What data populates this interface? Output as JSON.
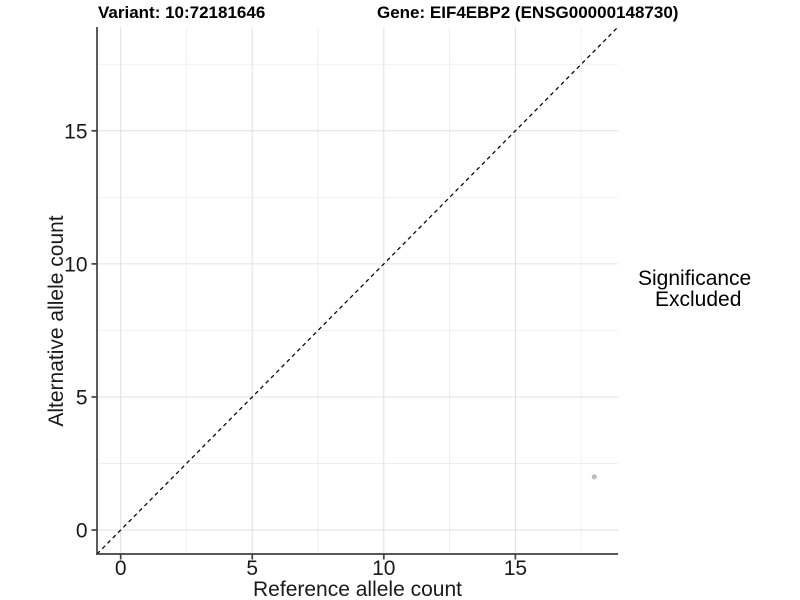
{
  "chart_data": {
    "type": "scatter",
    "title_left": "Variant: 10:72181646",
    "title_right": "Gene: EIF4EBP2 (ENSG00000148730)",
    "xlabel": "Reference allele count",
    "ylabel": "Alternative allele count",
    "xlim": [
      -0.9,
      18.9
    ],
    "ylim": [
      -0.9,
      18.9
    ],
    "x_ticks": [
      0,
      5,
      10,
      15
    ],
    "y_ticks": [
      0,
      5,
      10,
      15
    ],
    "x_minor_ticks": [
      2.5,
      7.5,
      12.5,
      17.5
    ],
    "y_minor_ticks": [
      2.5,
      7.5,
      12.5,
      17.5
    ],
    "grid": true,
    "reference_line": {
      "equation": "y = x",
      "style": "dashed",
      "color": "#000000"
    },
    "series": [
      {
        "name": "Excluded",
        "marker": "circle",
        "color": "#bcbcbc",
        "points": [
          {
            "x": 18,
            "y": 2
          }
        ]
      }
    ],
    "legend": {
      "title": "Significance",
      "position": "right",
      "items": [
        {
          "label": "Excluded",
          "marker": "circle",
          "color": "#ababab"
        }
      ]
    }
  },
  "colors": {
    "background": "#ffffff",
    "grid_major": "#e3e3e3",
    "grid_minor": "#eeeeee",
    "axis_line": "#404040",
    "tick_text": "#1a1a1a",
    "title_text": "#000000"
  }
}
